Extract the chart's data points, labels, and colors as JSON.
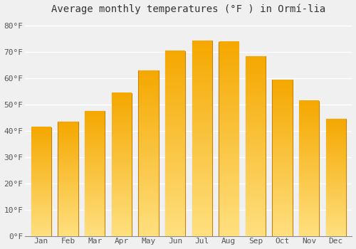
{
  "title": "Average monthly temperatures (°F ) in Ormí-lia",
  "months": [
    "Jan",
    "Feb",
    "Mar",
    "Apr",
    "May",
    "Jun",
    "Jul",
    "Aug",
    "Sep",
    "Oct",
    "Nov",
    "Dec"
  ],
  "values": [
    41.5,
    43.5,
    47.5,
    54.5,
    63.0,
    70.5,
    74.5,
    74.0,
    68.5,
    59.5,
    51.5,
    44.5
  ],
  "bar_color_top": "#F5A800",
  "bar_color_bottom": "#FFE080",
  "bar_edge_color": "#C88000",
  "yticks": [
    0,
    10,
    20,
    30,
    40,
    50,
    60,
    70,
    80
  ],
  "ytick_labels": [
    "0°F",
    "10°F",
    "20°F",
    "30°F",
    "40°F",
    "50°F",
    "60°F",
    "70°F",
    "80°F"
  ],
  "ylim": [
    0,
    83
  ],
  "background_color": "#f0f0f0",
  "grid_color": "#ffffff",
  "title_fontsize": 10,
  "tick_fontsize": 8,
  "bar_width": 0.75
}
